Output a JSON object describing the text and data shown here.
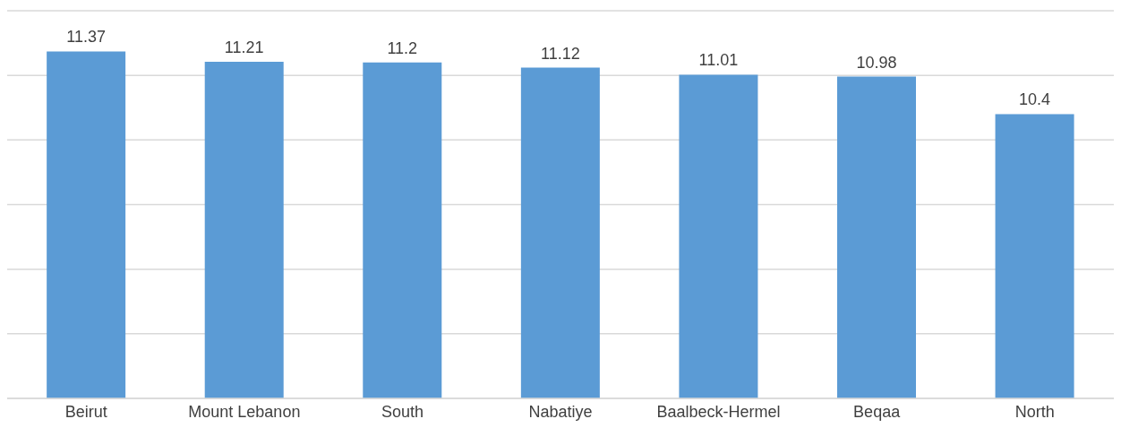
{
  "chart_data": {
    "type": "bar",
    "categories": [
      "Beirut",
      "Mount Lebanon",
      "South",
      "Nabatiye",
      "Baalbeck-Hermel",
      "Beqaa",
      "North"
    ],
    "values": [
      11.37,
      11.21,
      11.2,
      11.12,
      11.01,
      10.98,
      10.4
    ],
    "color": "#5b9bd5",
    "ylim": [
      6,
      12
    ],
    "yticks": [
      {
        "value": 6,
        "label": null
      },
      {
        "value": 7,
        "label": null
      },
      {
        "value": 8,
        "label": null
      },
      {
        "value": 9,
        "label": null
      },
      {
        "value": 10,
        "label": null
      },
      {
        "value": 11,
        "label": null
      },
      {
        "value": 12,
        "label": null
      }
    ],
    "grid": "y",
    "tick_labels": "x",
    "data_labels": true
  }
}
